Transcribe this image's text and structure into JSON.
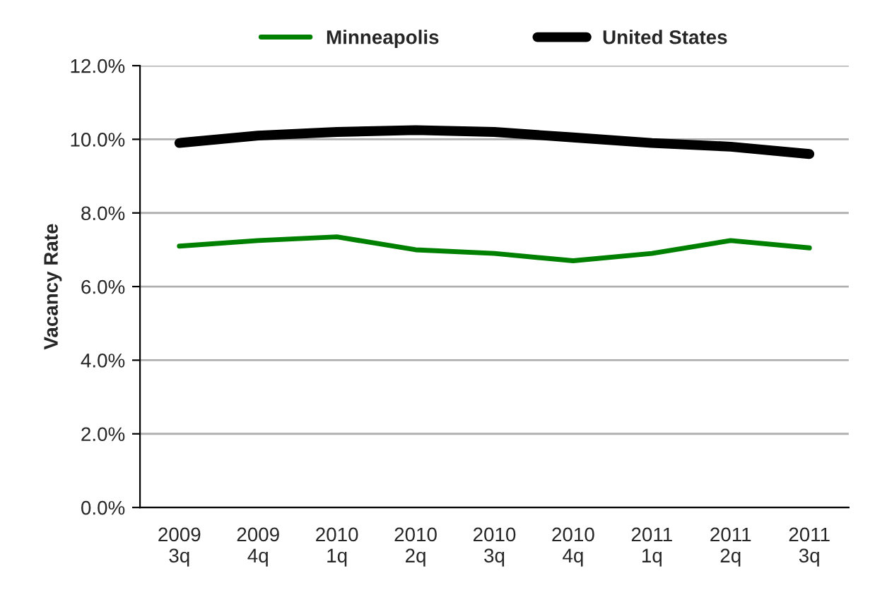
{
  "chart_data": {
    "type": "line",
    "ylabel": "Vacancy Rate",
    "categories": [
      "2009\n3q",
      "2009\n4q",
      "2010\n1q",
      "2010\n2q",
      "2010\n3q",
      "2010\n4q",
      "2011\n1q",
      "2011\n2q",
      "2011\n3q"
    ],
    "series": [
      {
        "name": "Minneapolis",
        "color": "#008000",
        "values": [
          7.1,
          7.25,
          7.35,
          7.0,
          6.9,
          6.7,
          6.9,
          7.25,
          7.05
        ]
      },
      {
        "name": "United States",
        "color": "#000000",
        "values": [
          9.9,
          10.1,
          10.2,
          10.25,
          10.2,
          10.05,
          9.9,
          9.8,
          9.6
        ]
      }
    ],
    "ylim": [
      0,
      12
    ],
    "yticks": [
      {
        "value": 0,
        "label": "0.0%"
      },
      {
        "value": 2,
        "label": "2.0%"
      },
      {
        "value": 4,
        "label": "4.0%"
      },
      {
        "value": 6,
        "label": "6.0%"
      },
      {
        "value": 8,
        "label": "8.0%"
      },
      {
        "value": 10,
        "label": "10.0%"
      },
      {
        "value": 12,
        "label": "12.0%"
      }
    ],
    "grid": "y",
    "legend": "top",
    "marker": "none",
    "line_style": "solid"
  }
}
